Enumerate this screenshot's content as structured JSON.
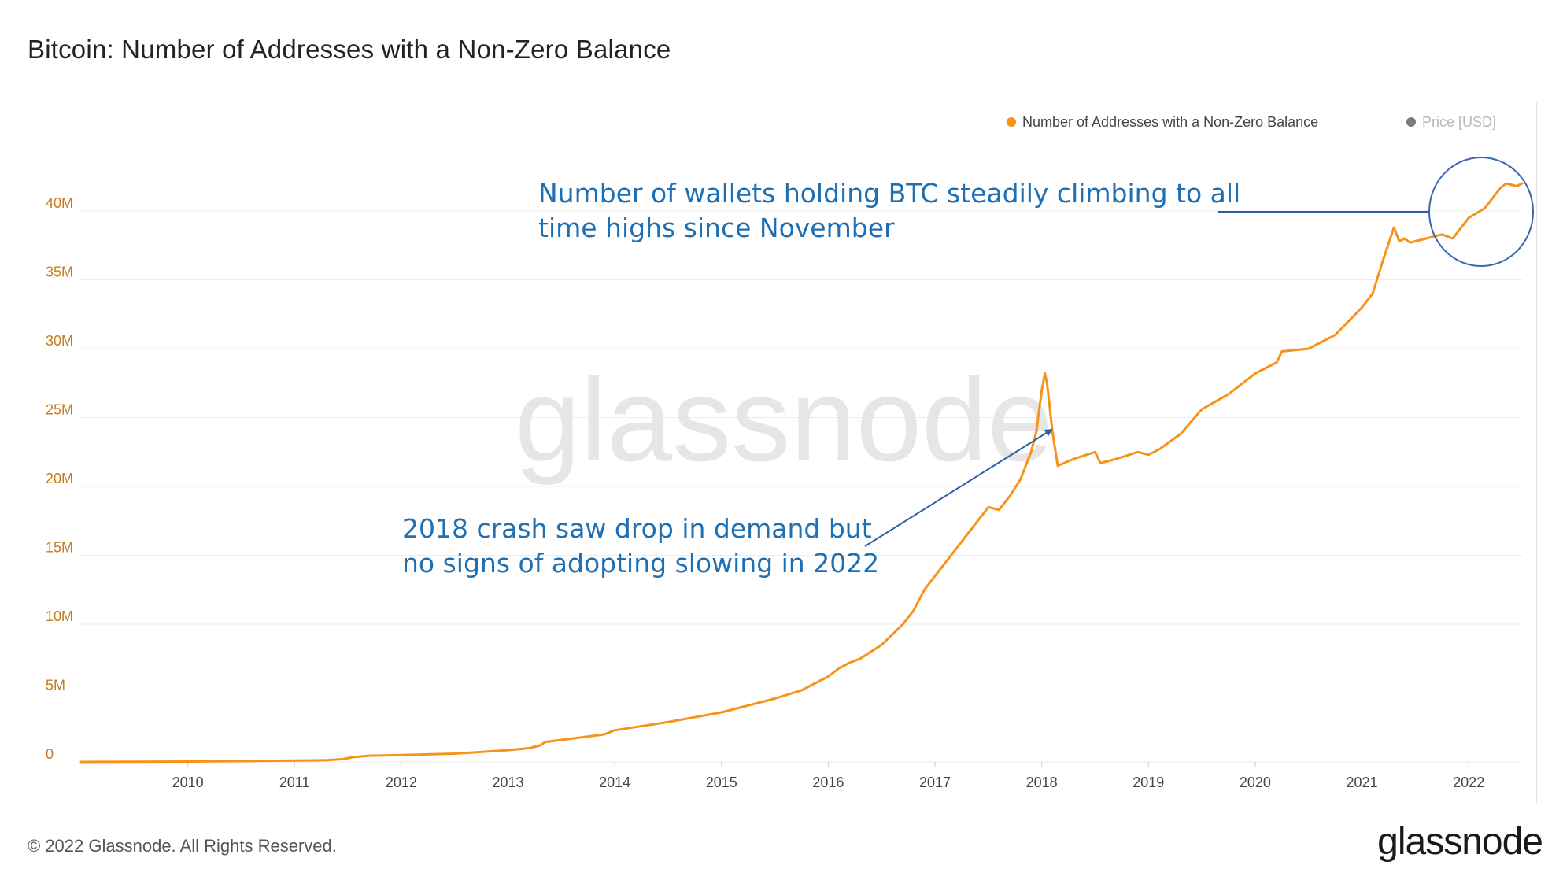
{
  "title": "Bitcoin: Number of Addresses with a Non-Zero Balance",
  "footer": {
    "copyright": "© 2022 Glassnode. All Rights Reserved.",
    "logo_text": "glassnode"
  },
  "watermark": "glassnode",
  "legend": [
    {
      "label": "Number of Addresses with a Non-Zero Balance",
      "color": "#f7931a"
    },
    {
      "label": "Price [USD]",
      "color": "#7b7b7b",
      "disabled": true
    }
  ],
  "annotations": [
    {
      "lines": [
        "Number of wallets holding BTC steadily climbing to all",
        "time highs since November"
      ],
      "color": "#1f6fb3"
    },
    {
      "lines": [
        "2018 crash saw drop in demand but",
        "no signs of adopting slowing in 2022"
      ],
      "color": "#1f6fb3"
    }
  ],
  "chart_data": {
    "type": "line",
    "title": "Bitcoin: Number of Addresses with a Non-Zero Balance",
    "xlabel": "",
    "ylabel": "",
    "ylim": [
      0,
      45000000
    ],
    "y_ticks": [
      0,
      5000000,
      10000000,
      15000000,
      20000000,
      25000000,
      30000000,
      35000000,
      40000000
    ],
    "y_tick_labels": [
      "0",
      "5M",
      "10M",
      "15M",
      "20M",
      "25M",
      "30M",
      "35M",
      "40M"
    ],
    "x_ticks": [
      2010,
      2011,
      2012,
      2013,
      2014,
      2015,
      2016,
      2017,
      2018,
      2019,
      2020,
      2021,
      2022
    ],
    "x_tick_labels": [
      "2010",
      "2011",
      "2012",
      "2013",
      "2014",
      "2015",
      "2016",
      "2017",
      "2018",
      "2019",
      "2020",
      "2021",
      "2022"
    ],
    "xlim": [
      2009.0,
      2022.5
    ],
    "grid": true,
    "legend_position": "top-right",
    "series": [
      {
        "name": "Number of Addresses with a Non-Zero Balance",
        "color": "#f7931a",
        "points": [
          [
            2009.0,
            0
          ],
          [
            2009.5,
            10000
          ],
          [
            2010.0,
            30000
          ],
          [
            2010.5,
            60000
          ],
          [
            2011.0,
            100000
          ],
          [
            2011.3,
            130000
          ],
          [
            2011.45,
            200000
          ],
          [
            2011.55,
            350000
          ],
          [
            2011.7,
            450000
          ],
          [
            2012.0,
            500000
          ],
          [
            2012.5,
            600000
          ],
          [
            2013.0,
            850000
          ],
          [
            2013.2,
            1000000
          ],
          [
            2013.3,
            1200000
          ],
          [
            2013.35,
            1450000
          ],
          [
            2013.5,
            1600000
          ],
          [
            2013.9,
            2000000
          ],
          [
            2014.0,
            2300000
          ],
          [
            2014.5,
            2900000
          ],
          [
            2015.0,
            3600000
          ],
          [
            2015.5,
            4600000
          ],
          [
            2015.75,
            5200000
          ],
          [
            2016.0,
            6200000
          ],
          [
            2016.1,
            6800000
          ],
          [
            2016.2,
            7200000
          ],
          [
            2016.3,
            7500000
          ],
          [
            2016.5,
            8500000
          ],
          [
            2016.7,
            10000000
          ],
          [
            2016.8,
            11000000
          ],
          [
            2016.9,
            12500000
          ],
          [
            2017.0,
            13500000
          ],
          [
            2017.2,
            15500000
          ],
          [
            2017.4,
            17500000
          ],
          [
            2017.5,
            18500000
          ],
          [
            2017.6,
            18300000
          ],
          [
            2017.7,
            19300000
          ],
          [
            2017.8,
            20500000
          ],
          [
            2017.9,
            22500000
          ],
          [
            2017.95,
            24000000
          ],
          [
            2018.0,
            27000000
          ],
          [
            2018.03,
            28200000
          ],
          [
            2018.05,
            27500000
          ],
          [
            2018.1,
            24000000
          ],
          [
            2018.15,
            21500000
          ],
          [
            2018.3,
            22000000
          ],
          [
            2018.5,
            22500000
          ],
          [
            2018.55,
            21700000
          ],
          [
            2018.7,
            22000000
          ],
          [
            2018.9,
            22500000
          ],
          [
            2019.0,
            22300000
          ],
          [
            2019.1,
            22700000
          ],
          [
            2019.3,
            23800000
          ],
          [
            2019.5,
            25600000
          ],
          [
            2019.75,
            26700000
          ],
          [
            2020.0,
            28200000
          ],
          [
            2020.2,
            29000000
          ],
          [
            2020.25,
            29800000
          ],
          [
            2020.5,
            30000000
          ],
          [
            2020.75,
            31000000
          ],
          [
            2021.0,
            33000000
          ],
          [
            2021.1,
            34000000
          ],
          [
            2021.2,
            36500000
          ],
          [
            2021.3,
            38800000
          ],
          [
            2021.35,
            37800000
          ],
          [
            2021.4,
            38000000
          ],
          [
            2021.45,
            37700000
          ],
          [
            2021.6,
            38000000
          ],
          [
            2021.75,
            38300000
          ],
          [
            2021.85,
            38000000
          ],
          [
            2022.0,
            39500000
          ],
          [
            2022.15,
            40200000
          ],
          [
            2022.2,
            40700000
          ],
          [
            2022.3,
            41700000
          ],
          [
            2022.35,
            42000000
          ],
          [
            2022.45,
            41800000
          ],
          [
            2022.5,
            42000000
          ]
        ]
      }
    ]
  }
}
